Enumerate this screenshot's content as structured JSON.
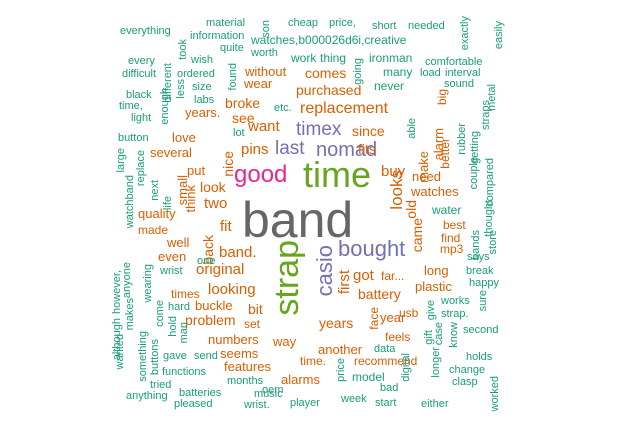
{
  "colors": {
    "background": "#ffffff",
    "teal": "#1b9e77",
    "orange": "#d95f02",
    "purple": "#7570b3",
    "magenta": "#e7298a",
    "green": "#66a61e",
    "gray": "#666666"
  },
  "words": [
    "band",
    "time",
    "strap",
    "good",
    "bought",
    "casio",
    "nomad",
    "timex",
    "last",
    "replacement",
    "band.",
    "original",
    "looks",
    "battery",
    "since",
    "want",
    "fits",
    "buy",
    "pins",
    "nice",
    "fit",
    "two",
    "looking",
    "got",
    "first",
    "old",
    "years",
    "buckle",
    "purchased",
    "comes",
    "without",
    "wear",
    "broke",
    "see",
    "years.",
    "look",
    "back",
    "bit",
    "problem",
    "numbers",
    "seems",
    "features",
    "alarms",
    "another",
    "times",
    "well",
    "even",
    "quality",
    "made",
    "several",
    "love",
    "put",
    "think",
    "small",
    "came",
    "watches",
    "need",
    "long",
    "plastic",
    "make",
    "alarm",
    "better",
    "big",
    "water",
    "best",
    "find",
    "mp3",
    "usb",
    "year",
    "far...",
    "face",
    "feels",
    "recommend",
    "way",
    "set",
    "time.",
    "model",
    "price",
    "bad",
    "data",
    "digital",
    "oem",
    "music",
    "wrist.",
    "months",
    "player",
    "week",
    "start",
    "either",
    "watches,b000026d6i,creative",
    "work",
    "thing",
    "ironman",
    "going",
    "never",
    "many",
    "load",
    "comfortable",
    "interval",
    "sound",
    "rubber",
    "straps",
    "getting",
    "compared",
    "metal",
    "couple",
    "thought",
    "store",
    "bands",
    "says",
    "break",
    "happy",
    "sure",
    "works",
    "strap.",
    "gift",
    "case",
    "give",
    "know",
    "second",
    "holds",
    "change",
    "clasp",
    "longer",
    "worked",
    "everything",
    "material",
    "son",
    "cheap",
    "price,",
    "short",
    "needed",
    "exactly",
    "easily",
    "information",
    "quite",
    "took",
    "wish",
    "every",
    "different",
    "worth",
    "ordered",
    "difficult",
    "size",
    "less",
    "found",
    "labs",
    "black",
    "enough",
    "time,",
    "light",
    "etc.",
    "lot",
    "able",
    "button",
    "large",
    "replace",
    "next",
    "life",
    "watchband",
    "anyone",
    "wearing",
    "however,",
    "come",
    "hard",
    "wrist",
    "hold",
    "man",
    "although",
    "makes",
    "wanted",
    "something",
    "buttons",
    "gave",
    "send",
    "functions",
    "tried",
    "batteries",
    "anything",
    "pleased",
    "one"
  ]
}
